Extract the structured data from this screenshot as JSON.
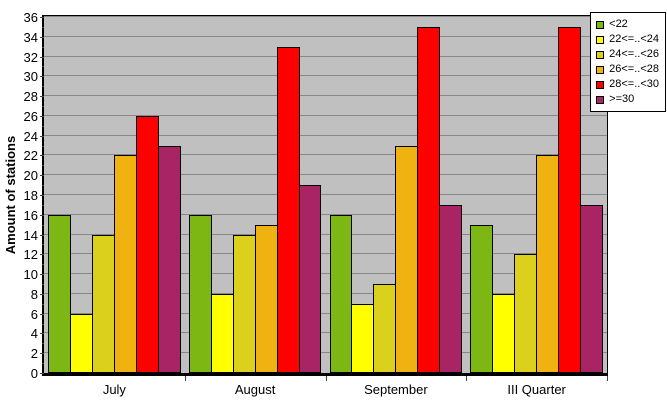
{
  "chart_data": {
    "type": "bar",
    "title": "",
    "xlabel": "",
    "ylabel": "Amount of stations",
    "categories": [
      "July",
      "August",
      "September",
      "III Quarter"
    ],
    "series": [
      {
        "name": "<22",
        "color": "#7db714",
        "values": [
          16,
          16,
          16,
          15
        ]
      },
      {
        "name": "22<=..<24",
        "color": "#ffff00",
        "values": [
          6,
          8,
          7,
          8
        ]
      },
      {
        "name": "24<=..<26",
        "color": "#dbd01c",
        "values": [
          14,
          14,
          9,
          12
        ]
      },
      {
        "name": "26<=..<28",
        "color": "#efb211",
        "values": [
          22,
          15,
          23,
          22
        ]
      },
      {
        "name": "28<=..<30",
        "color": "#ff0000",
        "values": [
          26,
          33,
          35,
          35
        ]
      },
      {
        "name": ">=30",
        "color": "#a82464",
        "values": [
          23,
          19,
          17,
          17
        ]
      }
    ],
    "ylim": [
      0,
      36
    ],
    "ytick_step": 2,
    "ytick_labels": [
      0,
      2,
      4,
      6,
      8,
      10,
      12,
      14,
      16,
      18,
      20,
      22,
      24,
      26,
      28,
      30,
      32,
      34,
      36
    ],
    "grid": true,
    "legend_position": "top-right",
    "plot_background": "#c0c0c0",
    "gridline_color": "#888888",
    "bar_border_color": "#000000"
  }
}
